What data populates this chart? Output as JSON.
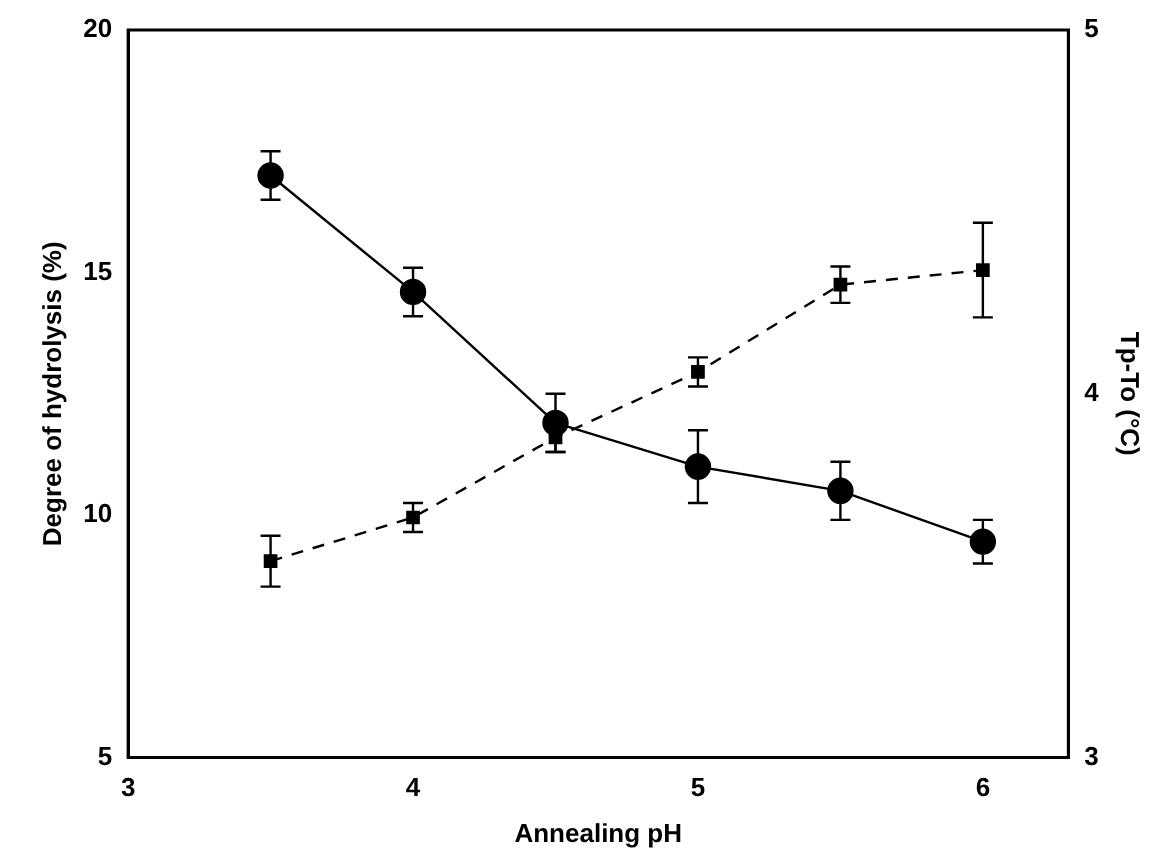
{
  "chart_data": {
    "type": "line",
    "xlabel": "Annealing pH",
    "ylabel": "Degree of hydrolysis (%)",
    "y2label": "Tp-To (°C)",
    "x": [
      3.5,
      4,
      4.5,
      5,
      5.5,
      6
    ],
    "series": [
      {
        "color": "#000000",
        "values": [
          17.0,
          14.6,
          11.9,
          11.0,
          10.5,
          9.45
        ],
        "errors": [
          0.5,
          0.5,
          0.6,
          0.75,
          0.6,
          0.45
        ],
        "marker": "circle",
        "line_style": "solid"
      },
      {
        "color": "#000000",
        "axis": "y2",
        "values": [
          3.54,
          3.66,
          3.88,
          4.06,
          4.3,
          4.34
        ],
        "errors": [
          0.07,
          0.04,
          0.04,
          0.04,
          0.05,
          0.13
        ],
        "marker": "square",
        "line_style": "dashed"
      }
    ],
    "xlim": [
      3,
      6.3
    ],
    "xticks": [
      3,
      4,
      5,
      6
    ],
    "ylim": [
      5,
      20
    ],
    "yticks": [
      5,
      10,
      15,
      20
    ],
    "y2lim": [
      3,
      5
    ],
    "y2ticks": [
      3,
      4,
      5
    ],
    "grid": false,
    "legend": false
  }
}
